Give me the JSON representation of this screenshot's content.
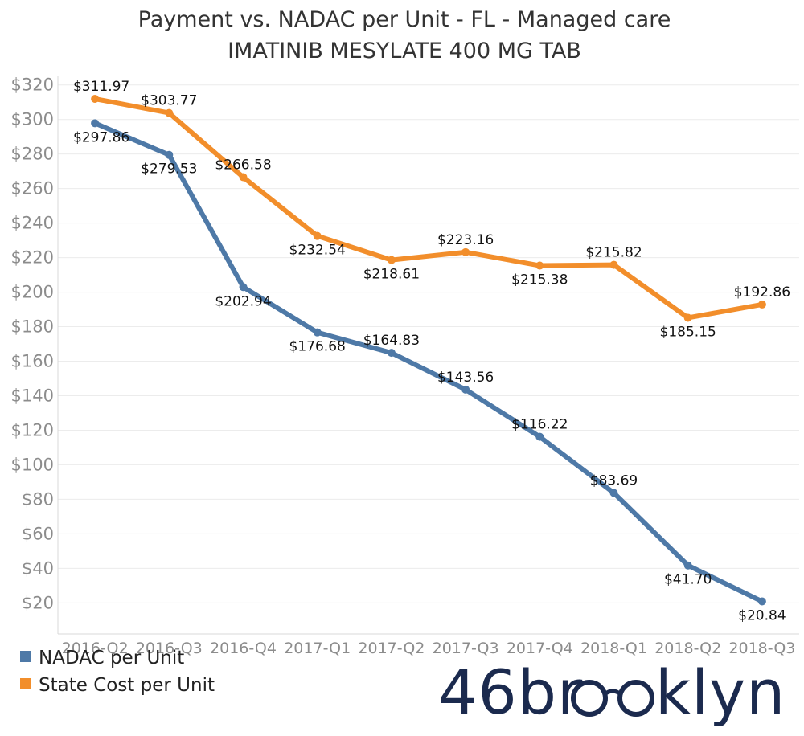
{
  "chart_data": {
    "type": "line",
    "title": "Payment vs. NADAC per Unit - FL - Managed care",
    "subtitle": "IMATINIB MESYLATE 400 MG TAB",
    "categories": [
      "2016-Q2",
      "2016-Q3",
      "2016-Q4",
      "2017-Q1",
      "2017-Q2",
      "2017-Q3",
      "2017-Q4",
      "2018-Q1",
      "2018-Q2",
      "2018-Q3"
    ],
    "yticks": [
      20,
      40,
      60,
      80,
      100,
      120,
      140,
      160,
      180,
      200,
      220,
      240,
      260,
      280,
      300,
      320
    ],
    "ytick_labels": [
      "$20",
      "$40",
      "$60",
      "$80",
      "$100",
      "$120",
      "$140",
      "$160",
      "$180",
      "$200",
      "$220",
      "$240",
      "$260",
      "$280",
      "$300",
      "$320"
    ],
    "ylim": [
      2,
      325
    ],
    "series": [
      {
        "name": "NADAC per Unit",
        "color": "#4e79a7",
        "values": [
          297.86,
          279.53,
          202.94,
          176.68,
          164.83,
          143.56,
          116.22,
          83.69,
          41.7,
          20.84
        ],
        "labels": [
          "$297.86",
          "$279.53",
          "$202.94",
          "$176.68",
          "$164.83",
          "$143.56",
          "$116.22",
          "$83.69",
          "$41.70",
          "$20.84"
        ],
        "label_pos": [
          "below",
          "below",
          "below",
          "below",
          "above",
          "above",
          "above",
          "above",
          "below",
          "below"
        ]
      },
      {
        "name": "State Cost per Unit",
        "color": "#f28e2b",
        "values": [
          311.97,
          303.77,
          266.58,
          232.54,
          218.61,
          223.16,
          215.38,
          215.82,
          185.15,
          192.86
        ],
        "labels": [
          "$311.97",
          "$303.77",
          "$266.58",
          "$232.54",
          "$218.61",
          "$223.16",
          "$215.38",
          "$215.82",
          "$185.15",
          "$192.86"
        ],
        "label_pos": [
          "above",
          "above",
          "above",
          "below",
          "below",
          "above",
          "below",
          "above",
          "below",
          "above"
        ]
      }
    ],
    "legend_position": "bottom-left"
  },
  "logo": {
    "text_before": "46br",
    "text_after": "klyn",
    "color": "#1b2a4e"
  }
}
